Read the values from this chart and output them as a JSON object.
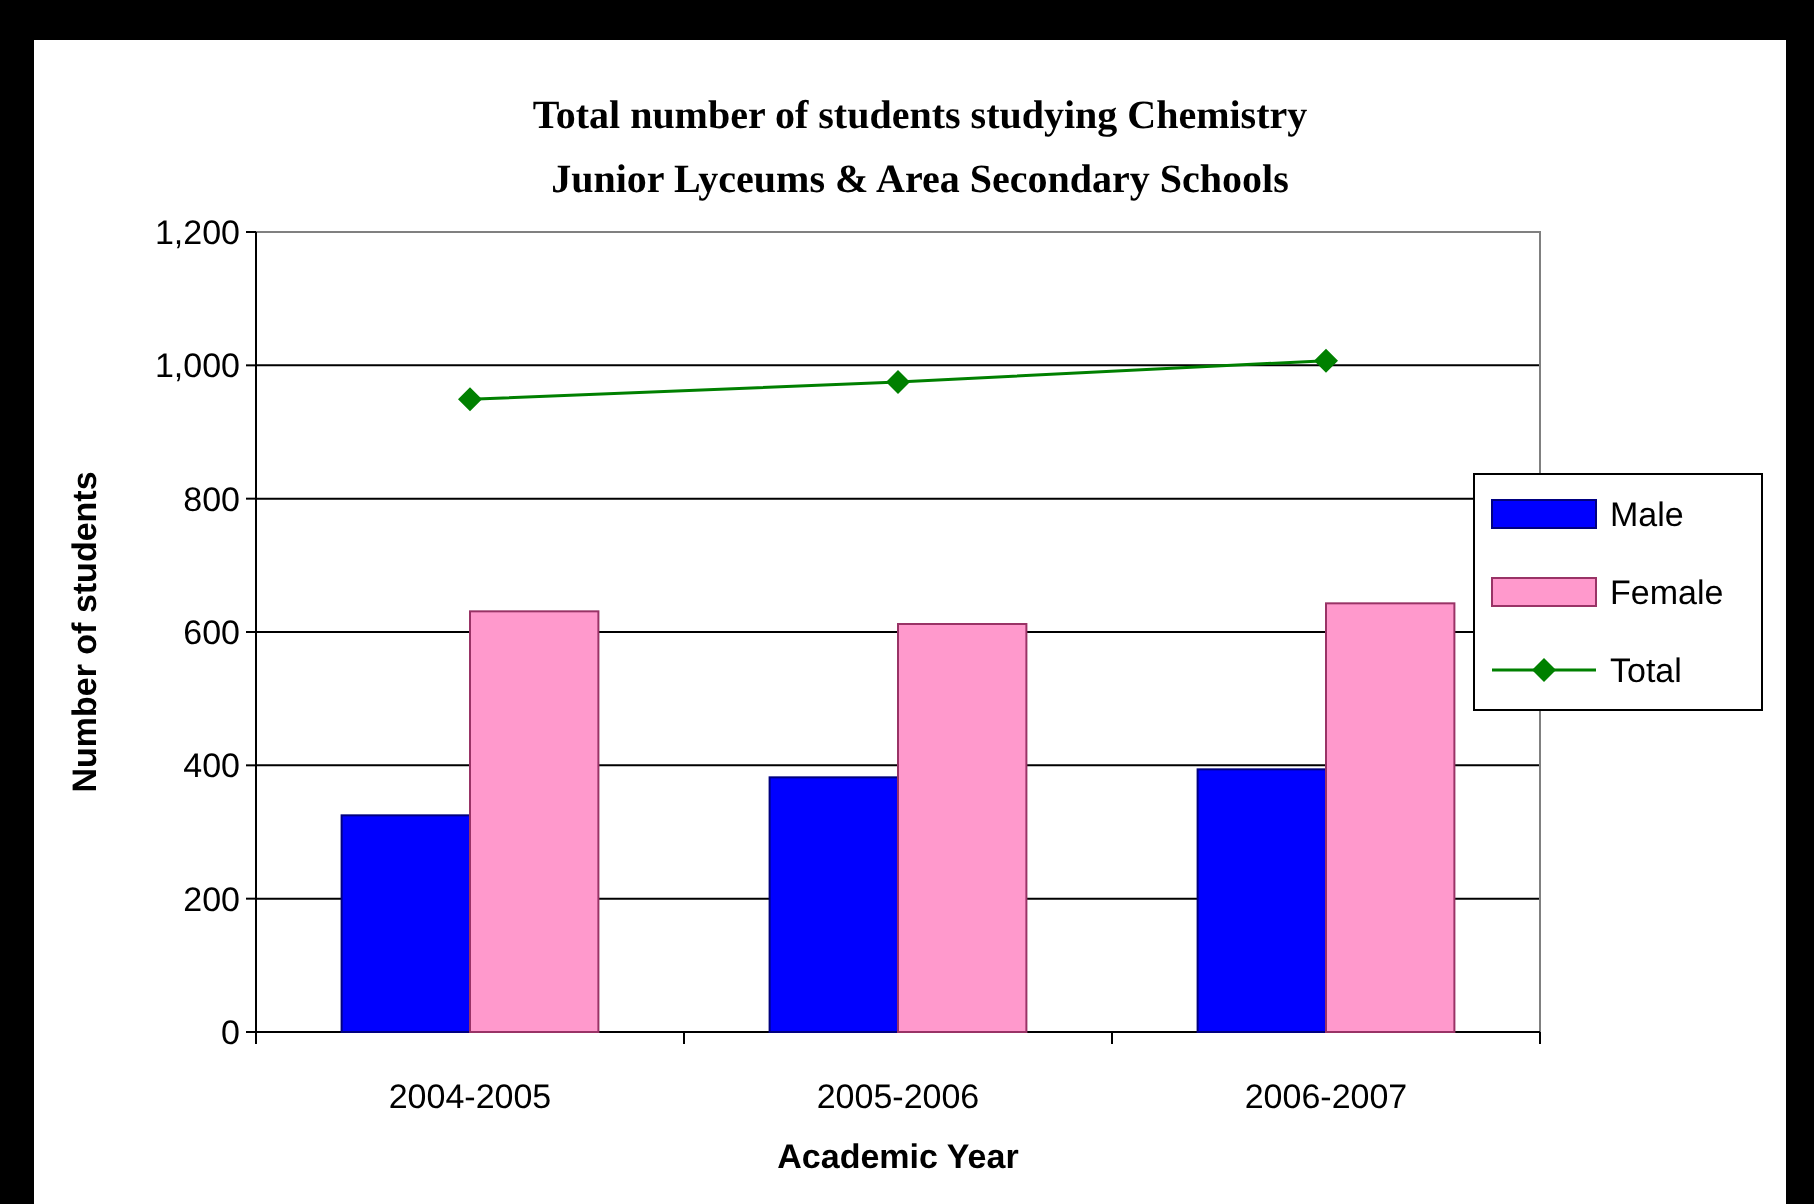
{
  "chart_data": {
    "type": "bar",
    "title": "Total number of students studying Chemistry",
    "subtitle": "Junior Lyceums & Area Secondary Schools",
    "xlabel": "Academic Year",
    "ylabel": "Number of students",
    "categories": [
      "2004-2005",
      "2005-2006",
      "2006-2007"
    ],
    "series": [
      {
        "name": "Male",
        "color": "#0000ff",
        "values": [
          325,
          382,
          394
        ]
      },
      {
        "name": "Female",
        "color": "#ff99cc",
        "values": [
          631,
          612,
          643
        ]
      },
      {
        "name": "Total",
        "type": "line",
        "color": "#008000",
        "values": [
          949,
          975,
          1007
        ]
      }
    ],
    "ylim": [
      0,
      1200
    ],
    "yticks": [
      {
        "value": 0,
        "label": "0"
      },
      {
        "value": 200,
        "label": "200"
      },
      {
        "value": 400,
        "label": "400"
      },
      {
        "value": 600,
        "label": "600"
      },
      {
        "value": 800,
        "label": "800"
      },
      {
        "value": 1000,
        "label": "1,000"
      },
      {
        "value": 1200,
        "label": "1,200"
      }
    ],
    "grid": "y",
    "legend": "right",
    "marker": "diamond"
  }
}
